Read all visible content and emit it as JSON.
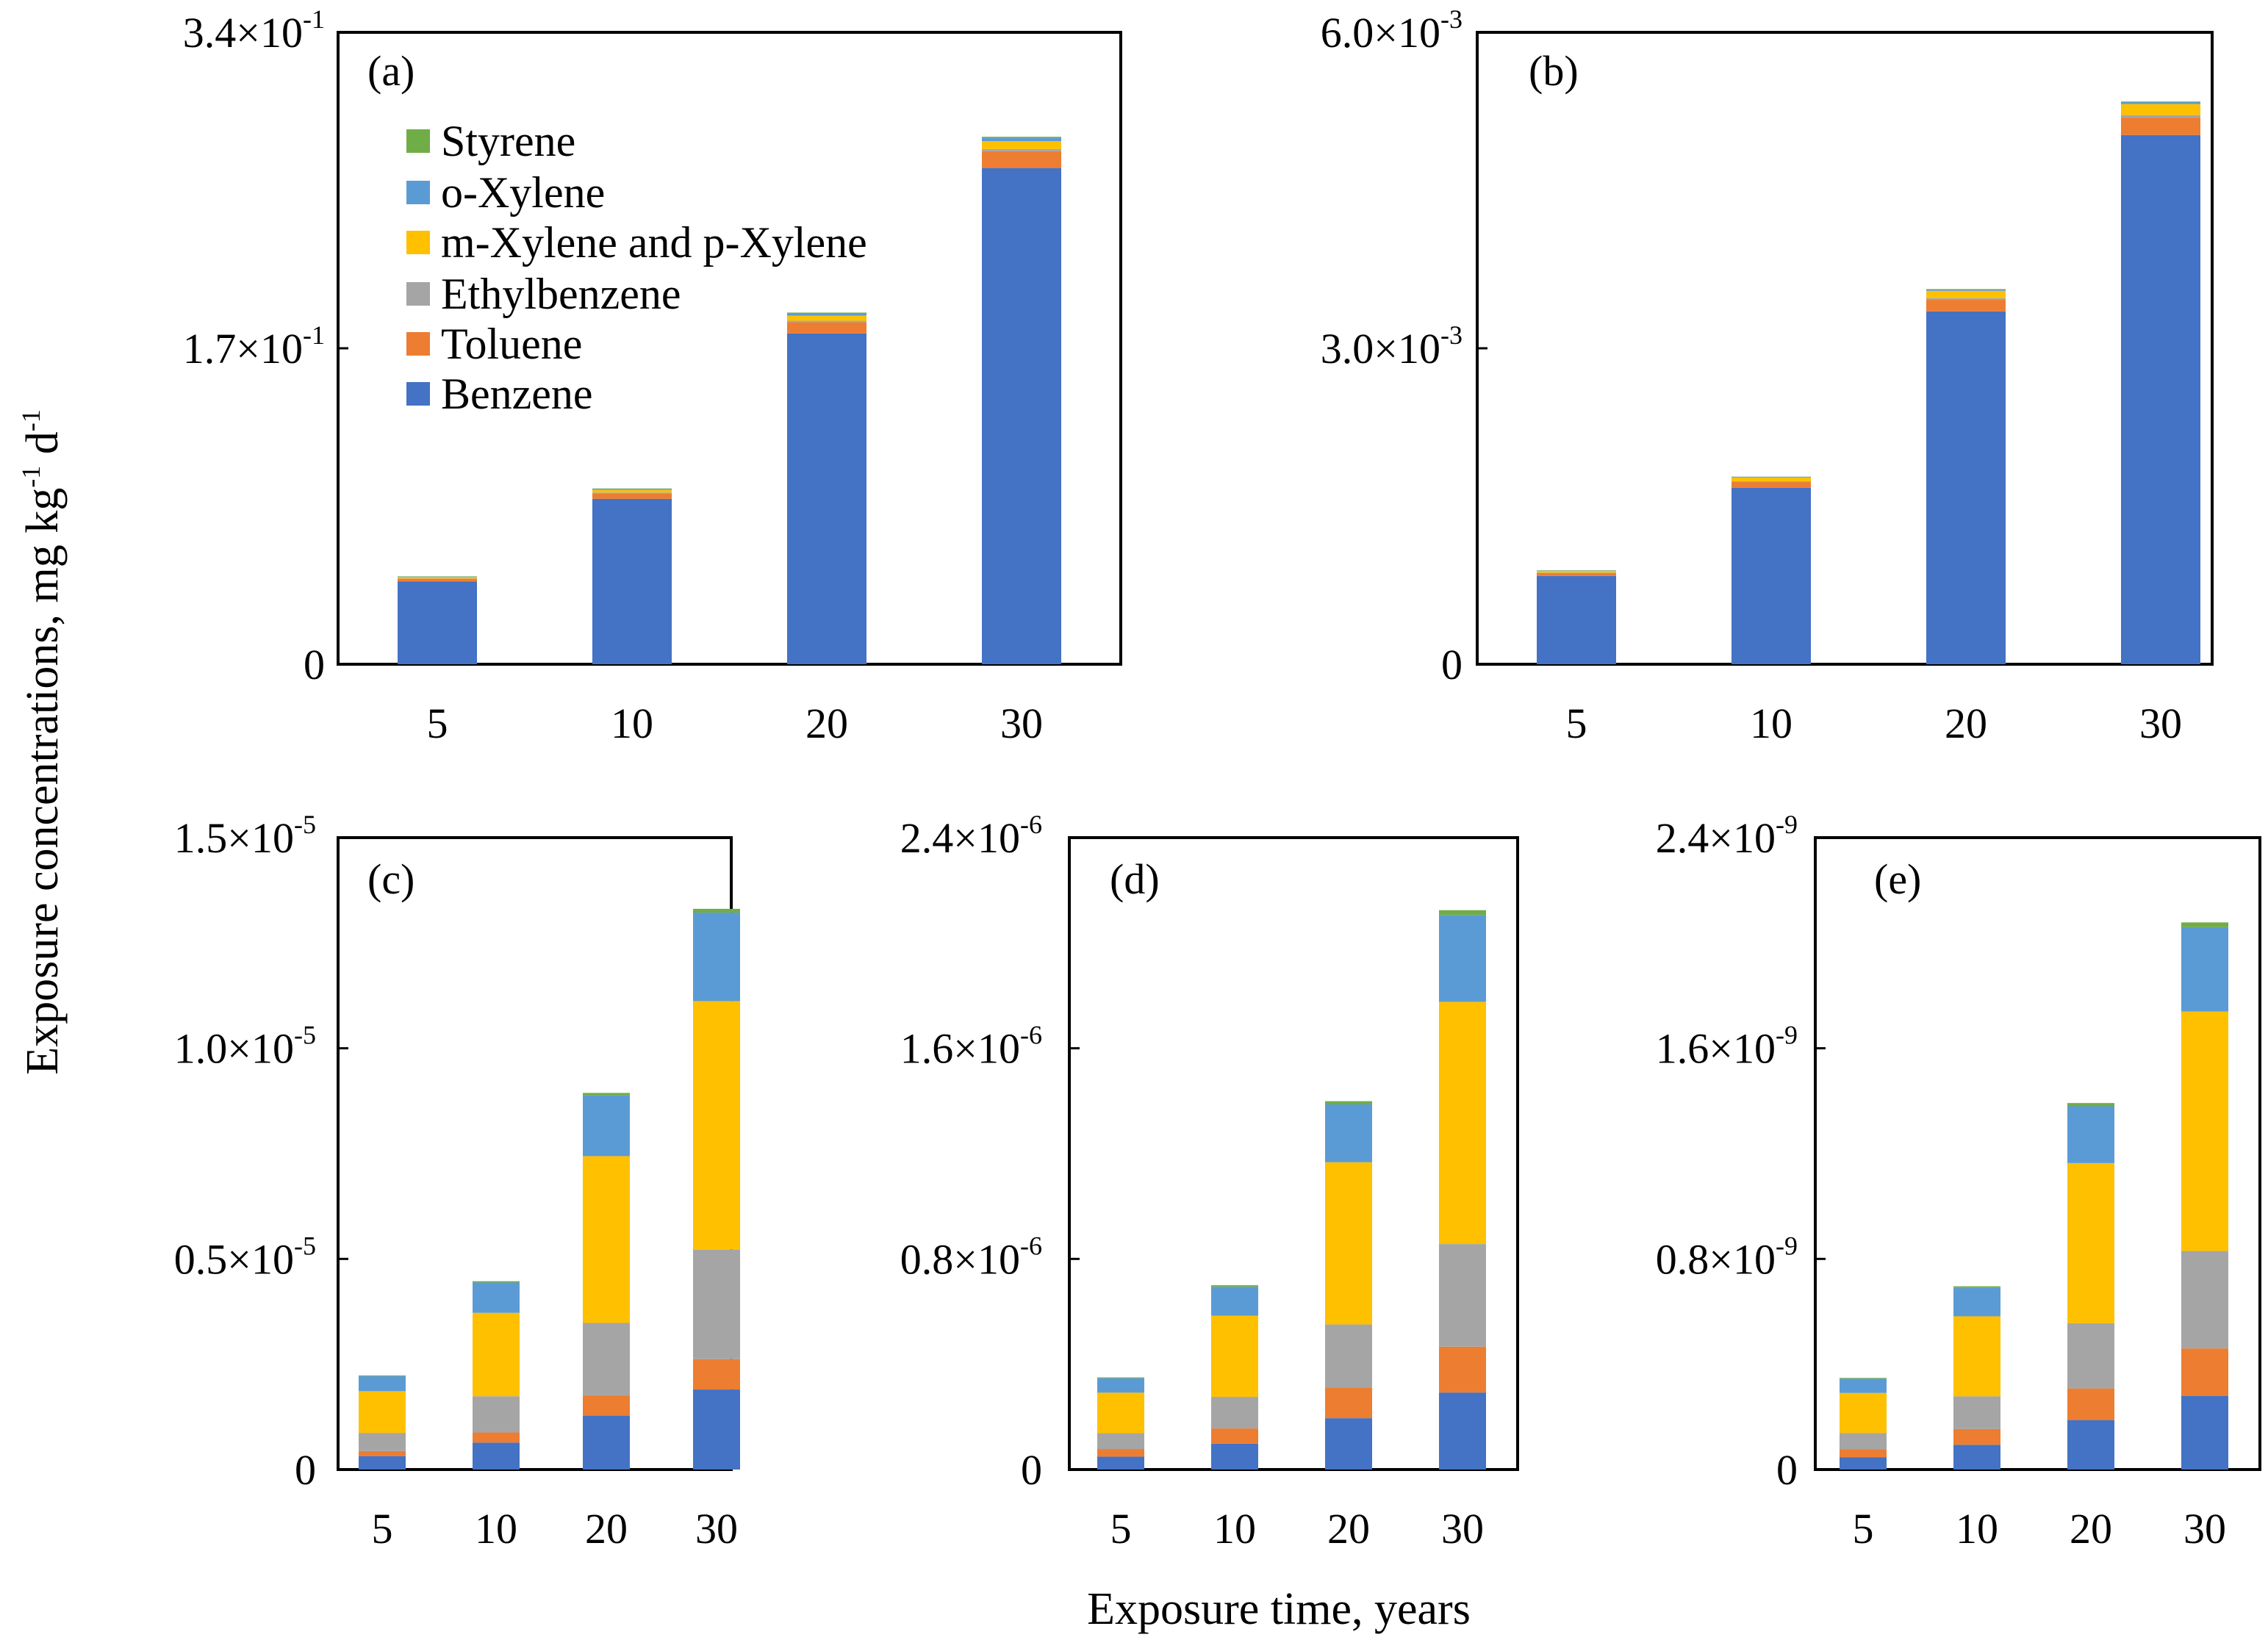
{
  "figure": {
    "y_title": "Exposure concentrations, mg kg",
    "y_title_sup1": "-1",
    "y_title_mid": " d",
    "y_title_sup2": "-1",
    "x_title": "Exposure time, years"
  },
  "colors": {
    "Benzene": "#4472C4",
    "Toluene": "#ED7D31",
    "Ethylbenzene": "#A5A5A5",
    "m-Xylene and p-Xylene": "#FFC000",
    "o-Xylene": "#5B9BD5",
    "Styrene": "#70AD47"
  },
  "legend": {
    "items": [
      "Styrene",
      "o-Xylene",
      "m-Xylene and p-Xylene",
      "Ethylbenzene",
      "Toluene",
      "Benzene"
    ]
  },
  "chart_data": [
    {
      "type": "bar",
      "stacked": true,
      "panel_label": "(a)",
      "categories": [
        "5",
        "10",
        "20",
        "30"
      ],
      "ylim": [
        0,
        0.34
      ],
      "yticks": [
        {
          "value": 0,
          "mant": "0",
          "exp": ""
        },
        {
          "value": 0.17,
          "mant": "1.7×10",
          "exp": "-1"
        },
        {
          "value": 0.34,
          "mant": "3.4×10",
          "exp": "-1"
        }
      ],
      "series": [
        {
          "name": "Benzene",
          "values": [
            0.0445,
            0.089,
            0.178,
            0.267
          ]
        },
        {
          "name": "Toluene",
          "values": [
            0.0015,
            0.003,
            0.006,
            0.009
          ]
        },
        {
          "name": "Ethylbenzene",
          "values": [
            0.0002,
            0.0004,
            0.0008,
            0.0012
          ]
        },
        {
          "name": "m-Xylene and p-Xylene",
          "values": [
            0.0007,
            0.0014,
            0.0028,
            0.0042
          ]
        },
        {
          "name": "o-Xylene",
          "values": [
            0.0003,
            0.0006,
            0.0012,
            0.0018
          ]
        },
        {
          "name": "Styrene",
          "values": [
            0.0001,
            0.0002,
            0.0004,
            0.0006
          ]
        }
      ]
    },
    {
      "type": "bar",
      "stacked": true,
      "panel_label": "(b)",
      "categories": [
        "5",
        "10",
        "20",
        "30"
      ],
      "ylim": [
        0,
        0.006
      ],
      "yticks": [
        {
          "value": 0,
          "mant": "0",
          "exp": ""
        },
        {
          "value": 0.003,
          "mant": "3.0×10",
          "exp": "-3"
        },
        {
          "value": 0.006,
          "mant": "6.0×10",
          "exp": "-3"
        }
      ],
      "series": [
        {
          "name": "Benzene",
          "values": [
            0.000838,
            0.001675,
            0.00335,
            0.005025
          ]
        },
        {
          "name": "Toluene",
          "values": [
            2.75e-05,
            5.5e-05,
            0.00011,
            0.000165
          ]
        },
        {
          "name": "Ethylbenzene",
          "values": [
            4e-06,
            8e-06,
            1.6e-05,
            2.4e-05
          ]
        },
        {
          "name": "m-Xylene and p-Xylene",
          "values": [
            1.75e-05,
            3.5e-05,
            7e-05,
            0.000105
          ]
        },
        {
          "name": "o-Xylene",
          "values": [
            3e-06,
            6e-06,
            1.2e-05,
            1.8e-05
          ]
        },
        {
          "name": "Styrene",
          "values": [
            1e-06,
            2e-06,
            4e-06,
            6e-06
          ]
        }
      ]
    },
    {
      "type": "bar",
      "stacked": true,
      "panel_label": "(c)",
      "categories": [
        "5",
        "10",
        "20",
        "30"
      ],
      "ylim": [
        0,
        1.5e-05
      ],
      "yticks": [
        {
          "value": 0,
          "mant": "0",
          "exp": ""
        },
        {
          "value": 5e-06,
          "mant": "0.5×10",
          "exp": "-5"
        },
        {
          "value": 1e-05,
          "mant": "1.0×10",
          "exp": "-5"
        },
        {
          "value": 1.5e-05,
          "mant": "1.5×10",
          "exp": "-5"
        }
      ],
      "series": [
        {
          "name": "Benzene",
          "values": [
            3.2e-07,
            6.4e-07,
            1.28e-06,
            1.9e-06
          ]
        },
        {
          "name": "Toluene",
          "values": [
            1.2e-07,
            2.4e-07,
            4.8e-07,
            7.2e-07
          ]
        },
        {
          "name": "Ethylbenzene",
          "values": [
            4.3e-07,
            8.6e-07,
            1.72e-06,
            2.6e-06
          ]
        },
        {
          "name": "m-Xylene and p-Xylene",
          "values": [
            9.9e-07,
            1.98e-06,
            3.96e-06,
            5.9e-06
          ]
        },
        {
          "name": "o-Xylene",
          "values": [
            3.6e-07,
            7.2e-07,
            1.44e-06,
            2.1e-06
          ]
        },
        {
          "name": "Styrene",
          "values": [
            1.5e-08,
            3e-08,
            6e-08,
            9e-08
          ]
        }
      ]
    },
    {
      "type": "bar",
      "stacked": true,
      "panel_label": "(d)",
      "categories": [
        "5",
        "10",
        "20",
        "30"
      ],
      "ylim": [
        0,
        2.4e-06
      ],
      "yticks": [
        {
          "value": 0,
          "mant": "0",
          "exp": ""
        },
        {
          "value": 8e-07,
          "mant": "0.8×10",
          "exp": "-6"
        },
        {
          "value": 1.6e-06,
          "mant": "1.6×10",
          "exp": "-6"
        },
        {
          "value": 2.4e-06,
          "mant": "2.4×10",
          "exp": "-6"
        }
      ],
      "series": [
        {
          "name": "Benzene",
          "values": [
            4.9e-08,
            9.8e-08,
            1.95e-07,
            2.925e-07
          ]
        },
        {
          "name": "Toluene",
          "values": [
            2.9e-08,
            5.8e-08,
            1.16e-07,
            1.74e-07
          ]
        },
        {
          "name": "Ethylbenzene",
          "values": [
            6e-08,
            1.2e-07,
            2.4e-07,
            3.9e-07
          ]
        },
        {
          "name": "m-Xylene and p-Xylene",
          "values": [
            1.54e-07,
            3.08e-07,
            6.16e-07,
            9.2e-07
          ]
        },
        {
          "name": "o-Xylene",
          "values": [
            5.5e-08,
            1.1e-07,
            2.2e-07,
            3.3e-07
          ]
        },
        {
          "name": "Styrene",
          "values": [
            3e-09,
            6e-09,
            1.2e-08,
            1.8e-08
          ]
        }
      ]
    },
    {
      "type": "bar",
      "stacked": true,
      "panel_label": "(e)",
      "categories": [
        "5",
        "10",
        "20",
        "30"
      ],
      "ylim": [
        0,
        2.4e-09
      ],
      "yticks": [
        {
          "value": 0,
          "mant": "0",
          "exp": ""
        },
        {
          "value": 8e-10,
          "mant": "0.8×10",
          "exp": "-9"
        },
        {
          "value": 1.6e-09,
          "mant": "1.6×10",
          "exp": "-9"
        },
        {
          "value": 2.4e-09,
          "mant": "2.4×10",
          "exp": "-9"
        }
      ],
      "series": [
        {
          "name": "Benzene",
          "values": [
            4.7e-11,
            9.4e-11,
            1.88e-10,
            2.8e-10
          ]
        },
        {
          "name": "Toluene",
          "values": [
            3e-11,
            6e-11,
            1.2e-10,
            1.8e-10
          ]
        },
        {
          "name": "Ethylbenzene",
          "values": [
            6.2e-11,
            1.24e-10,
            2.48e-10,
            3.7e-10
          ]
        },
        {
          "name": "m-Xylene and p-Xylene",
          "values": [
            1.52e-10,
            3.04e-10,
            6.08e-10,
            9.1e-10
          ]
        },
        {
          "name": "o-Xylene",
          "values": [
            5.4e-11,
            1.08e-10,
            2.16e-10,
            3.2e-10
          ]
        },
        {
          "name": "Styrene",
          "values": [
            3e-12,
            6e-12,
            1.2e-11,
            1.8e-11
          ]
        }
      ]
    }
  ]
}
